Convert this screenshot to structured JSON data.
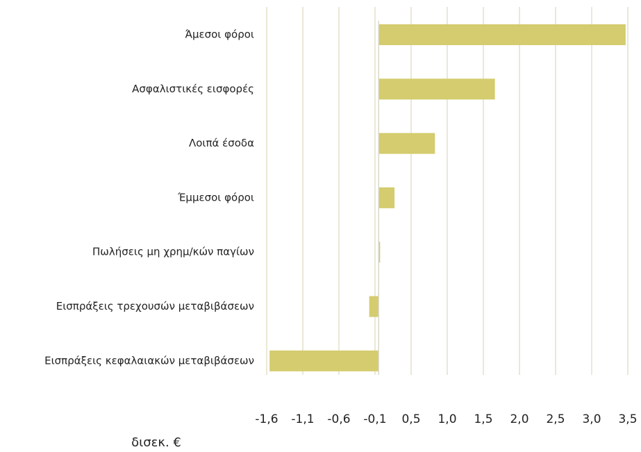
{
  "chart_data": {
    "type": "hbar",
    "categories": [
      "Άμεσοι φόροι",
      "Ασφαλιστικές εισφορές",
      "Λοιπά έσοδα",
      "Έμμεσοι φόροι",
      "Πωλήσεις μη χρημ/κών παγίων",
      "Εισπράξεις τρεχουσών μεταβιβάσεων",
      "Εισπράξεις κεφαλαιακών μεταβιβάσεων"
    ],
    "values": [
      3.42,
      1.61,
      0.78,
      0.22,
      0.02,
      -0.13,
      -1.51
    ],
    "color": "#d4cc6e",
    "xlabel": "δισεκ. €",
    "xlim": [
      -1.55,
      3.45
    ],
    "xticks": [
      {
        "value": -1.55,
        "label": "-1,6"
      },
      {
        "value": -1.05,
        "label": "-1,1"
      },
      {
        "value": -0.55,
        "label": "-0,6"
      },
      {
        "value": -0.05,
        "label": "-0,1"
      },
      {
        "value": 0.45,
        "label": "0,5"
      },
      {
        "value": 0.95,
        "label": "1,0"
      },
      {
        "value": 1.45,
        "label": "1,5"
      },
      {
        "value": 1.95,
        "label": "2,0"
      },
      {
        "value": 2.45,
        "label": "2,5"
      },
      {
        "value": 2.95,
        "label": "3,0"
      },
      {
        "value": 3.45,
        "label": "3,5"
      }
    ],
    "grid": true
  }
}
